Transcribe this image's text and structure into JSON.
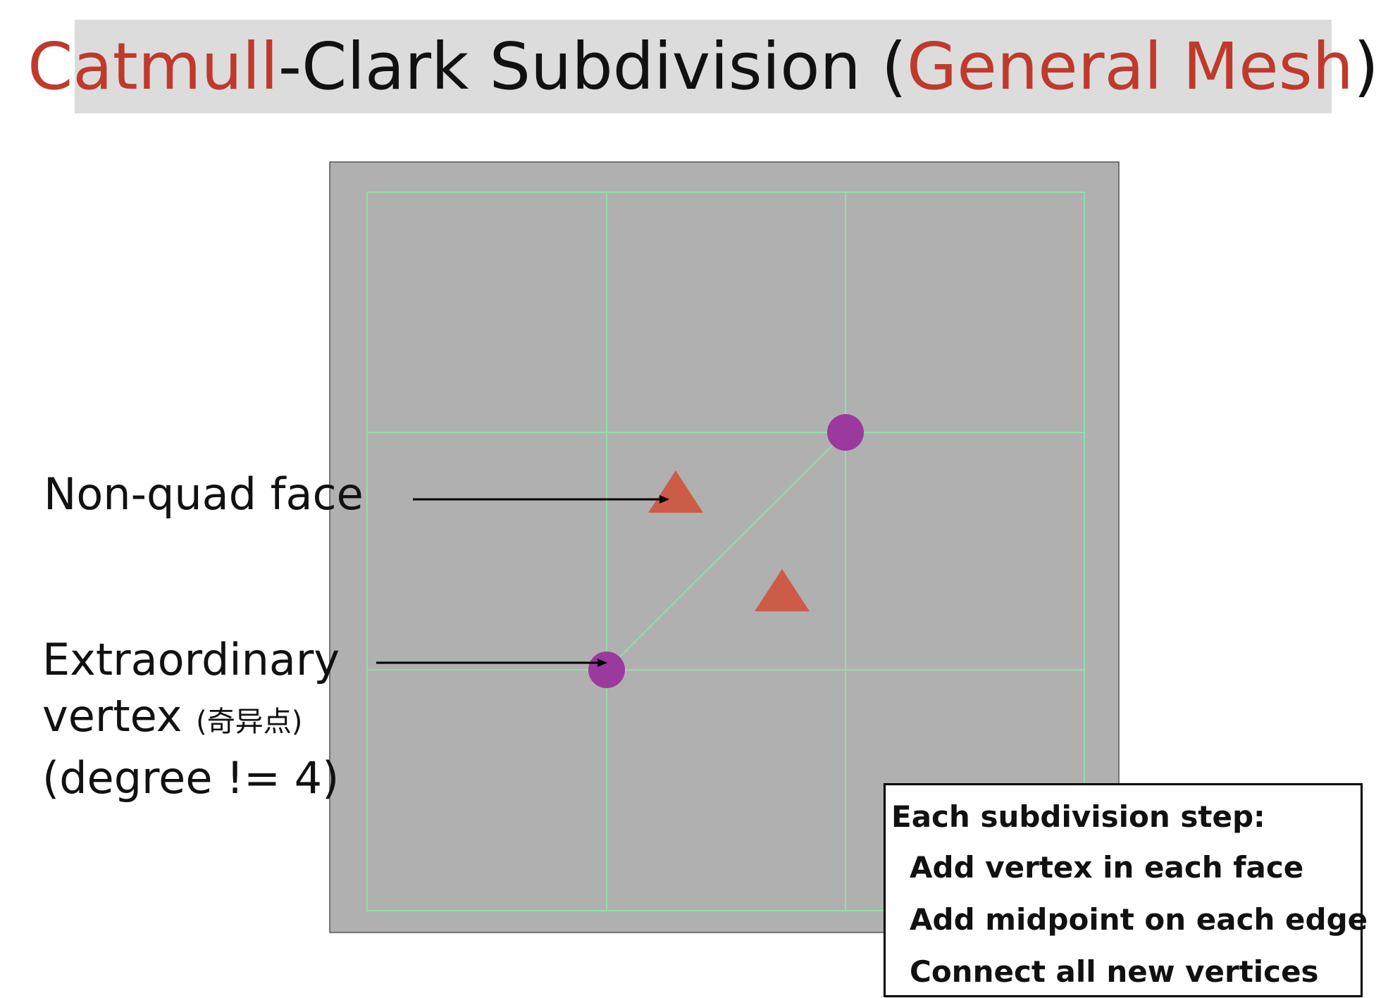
{
  "title": {
    "part1": "Catmull",
    "part2": "-Clark Subdivision (",
    "part3": "General Mesh",
    "part4": ")"
  },
  "labels": {
    "non_quad_face": "Non-quad face",
    "extraordinary_line1": "Extraordinary",
    "extraordinary_line2": "vertex ",
    "extraordinary_cjk": "(奇异点)",
    "extraordinary_line3": "(degree != 4)"
  },
  "steps": {
    "heading": "Each subdivision step:",
    "items": [
      "Add vertex in each face",
      "Add midpoint on each edge",
      "Connect all new vertices"
    ]
  },
  "colors": {
    "accent": "#bf3a2b",
    "mesh_fill": "#b0b0b0",
    "mesh_line": "#8fe0a6",
    "vertex": "#9b3a9e",
    "face_marker": "#cc5c48"
  }
}
